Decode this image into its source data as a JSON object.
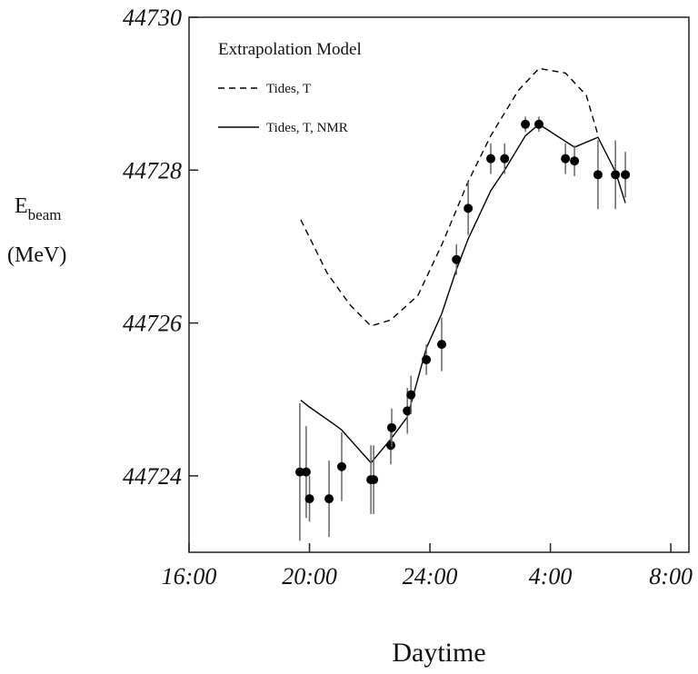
{
  "chart_data": {
    "type": "scatter",
    "y_label": "E",
    "y_label_subscript": "beam",
    "y_unit": "(MeV)",
    "x_label": "Daytime",
    "legend_title": "Extrapolation Model",
    "xlim": [
      16,
      32.6
    ],
    "xticks": [
      {
        "value": 16,
        "label": "16:00"
      },
      {
        "value": 20,
        "label": "20:00"
      },
      {
        "value": 24,
        "label": "24:00"
      },
      {
        "value": 28,
        "label": "4:00"
      },
      {
        "value": 32,
        "label": "8:00"
      }
    ],
    "ylim": [
      44723,
      44730
    ],
    "yticks": [
      44724,
      44726,
      44728,
      44730
    ],
    "points": {
      "color": "#000000",
      "x": [
        19.68,
        19.89,
        20.0,
        20.65,
        21.07,
        22.04,
        22.13,
        22.7,
        22.73,
        23.25,
        23.37,
        23.88,
        24.39,
        24.88,
        25.27,
        26.02,
        26.48,
        27.17,
        27.62,
        28.5,
        28.8,
        29.58,
        30.16,
        30.49
      ],
      "y": [
        44724.05,
        44724.05,
        44723.7,
        44723.7,
        44724.12,
        44723.95,
        44723.95,
        44724.4,
        44724.63,
        44724.85,
        44725.06,
        44725.52,
        44725.72,
        44726.83,
        44727.5,
        44728.15,
        44728.15,
        44728.6,
        44728.6,
        44728.15,
        44728.12,
        44727.94,
        44727.94,
        44727.94
      ],
      "err": [
        0.9,
        0.6,
        0.3,
        0.5,
        0.45,
        0.45,
        0.45,
        0.25,
        0.25,
        0.3,
        0.25,
        0.2,
        0.35,
        0.2,
        0.35,
        0.2,
        0.2,
        0.1,
        0.1,
        0.2,
        0.2,
        0.45,
        0.45,
        0.3
      ]
    },
    "series": [
      {
        "name": "Tides, T",
        "color": "#000000",
        "dashed": true,
        "x": [
          19.71,
          20.59,
          21.34,
          22.04,
          22.7,
          23.6,
          24.39,
          25.27,
          26.02,
          26.93,
          27.62,
          28.5,
          29.19,
          29.58
        ],
        "values": [
          44727.35,
          44726.65,
          44726.24,
          44725.96,
          44726.04,
          44726.36,
          44727.02,
          44727.85,
          44728.45,
          44729.04,
          44729.33,
          44729.27,
          44728.98,
          44728.46
        ]
      },
      {
        "name": "Tides, T, NMR",
        "color": "#000000",
        "dashed": false,
        "x": [
          19.71,
          20.0,
          20.83,
          21.07,
          22.04,
          22.7,
          23.25,
          23.88,
          24.39,
          24.88,
          25.27,
          26.02,
          26.48,
          27.17,
          27.62,
          28.8,
          29.58,
          30.16,
          30.49
        ],
        "values": [
          44724.99,
          44724.9,
          44724.67,
          44724.6,
          44724.17,
          44724.48,
          44724.77,
          44725.67,
          44726.12,
          44726.7,
          44727.1,
          44727.73,
          44728.0,
          44728.45,
          44728.6,
          44728.3,
          44728.43,
          44727.98,
          44727.57
        ]
      }
    ]
  }
}
